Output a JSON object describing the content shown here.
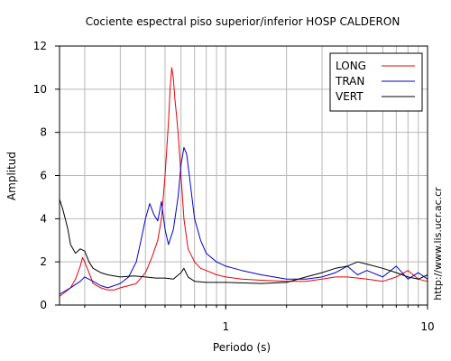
{
  "chart_data": {
    "type": "line",
    "title": "Cociente espectral piso superior/inferior  HOSP CALDERON",
    "xlabel": "Periodo (s)",
    "ylabel": "Amplitud",
    "xscale": "log",
    "xlim": [
      0.15,
      10
    ],
    "ylim": [
      0,
      12
    ],
    "x_ticks": [
      {
        "value": 1,
        "label": "1"
      },
      {
        "value": 10,
        "label": "10"
      }
    ],
    "y_ticks": [
      0,
      2,
      4,
      6,
      8,
      10,
      12
    ],
    "grid": true,
    "legend_position": "top-right",
    "side_text": "http://www.lis.ucr.ac.cr",
    "series": [
      {
        "name": "LONG",
        "color": "#e8000b",
        "x": [
          0.15,
          0.16,
          0.17,
          0.18,
          0.19,
          0.195,
          0.2,
          0.21,
          0.22,
          0.24,
          0.26,
          0.28,
          0.3,
          0.33,
          0.36,
          0.4,
          0.43,
          0.46,
          0.48,
          0.5,
          0.52,
          0.53,
          0.54,
          0.55,
          0.56,
          0.57,
          0.58,
          0.6,
          0.62,
          0.65,
          0.7,
          0.75,
          0.8,
          0.9,
          1.0,
          1.2,
          1.5,
          2.0,
          2.5,
          3.0,
          3.5,
          4.0,
          5.0,
          6.0,
          7.0,
          8.0,
          9.0,
          10.0
        ],
        "y": [
          0.4,
          0.6,
          0.8,
          1.2,
          1.8,
          2.2,
          2.0,
          1.5,
          1.0,
          0.8,
          0.7,
          0.7,
          0.8,
          0.9,
          1.0,
          1.5,
          2.2,
          3.0,
          4.0,
          6.0,
          8.5,
          10.0,
          11.0,
          10.5,
          9.5,
          8.8,
          8.0,
          6.0,
          4.0,
          2.6,
          2.0,
          1.7,
          1.6,
          1.4,
          1.3,
          1.2,
          1.15,
          1.1,
          1.1,
          1.2,
          1.3,
          1.3,
          1.2,
          1.1,
          1.3,
          1.6,
          1.2,
          1.1
        ]
      },
      {
        "name": "TRAN",
        "color": "#0000cc",
        "x": [
          0.15,
          0.17,
          0.19,
          0.2,
          0.22,
          0.24,
          0.26,
          0.28,
          0.3,
          0.33,
          0.36,
          0.38,
          0.4,
          0.42,
          0.44,
          0.46,
          0.48,
          0.5,
          0.52,
          0.55,
          0.58,
          0.6,
          0.62,
          0.64,
          0.66,
          0.68,
          0.7,
          0.75,
          0.8,
          0.9,
          1.0,
          1.2,
          1.5,
          2.0,
          2.5,
          3.0,
          3.5,
          4.0,
          4.5,
          5.0,
          6.0,
          7.0,
          8.0,
          9.0,
          10.0
        ],
        "y": [
          0.5,
          0.8,
          1.1,
          1.3,
          1.1,
          0.9,
          0.8,
          0.9,
          1.0,
          1.3,
          2.0,
          3.0,
          4.0,
          4.7,
          4.2,
          3.9,
          4.8,
          3.5,
          2.8,
          3.5,
          5.0,
          6.5,
          7.3,
          7.0,
          6.0,
          5.0,
          4.0,
          3.0,
          2.4,
          2.0,
          1.8,
          1.6,
          1.4,
          1.2,
          1.2,
          1.3,
          1.5,
          1.8,
          1.4,
          1.6,
          1.3,
          1.8,
          1.2,
          1.5,
          1.2
        ]
      },
      {
        "name": "VERT",
        "color": "#000000",
        "x": [
          0.15,
          0.155,
          0.16,
          0.165,
          0.17,
          0.18,
          0.19,
          0.2,
          0.21,
          0.22,
          0.24,
          0.26,
          0.28,
          0.3,
          0.35,
          0.4,
          0.45,
          0.5,
          0.55,
          0.6,
          0.62,
          0.65,
          0.7,
          0.8,
          1.0,
          1.5,
          2.0,
          2.5,
          3.0,
          3.5,
          4.0,
          4.5,
          5.0,
          6.0,
          7.0,
          8.0,
          9.0,
          10.0
        ],
        "y": [
          4.9,
          4.5,
          4.0,
          3.5,
          2.8,
          2.4,
          2.6,
          2.5,
          2.0,
          1.7,
          1.5,
          1.4,
          1.35,
          1.3,
          1.35,
          1.3,
          1.25,
          1.25,
          1.2,
          1.5,
          1.7,
          1.3,
          1.1,
          1.05,
          1.05,
          1.0,
          1.05,
          1.3,
          1.5,
          1.7,
          1.8,
          2.0,
          1.9,
          1.7,
          1.5,
          1.3,
          1.2,
          1.4
        ]
      }
    ]
  }
}
